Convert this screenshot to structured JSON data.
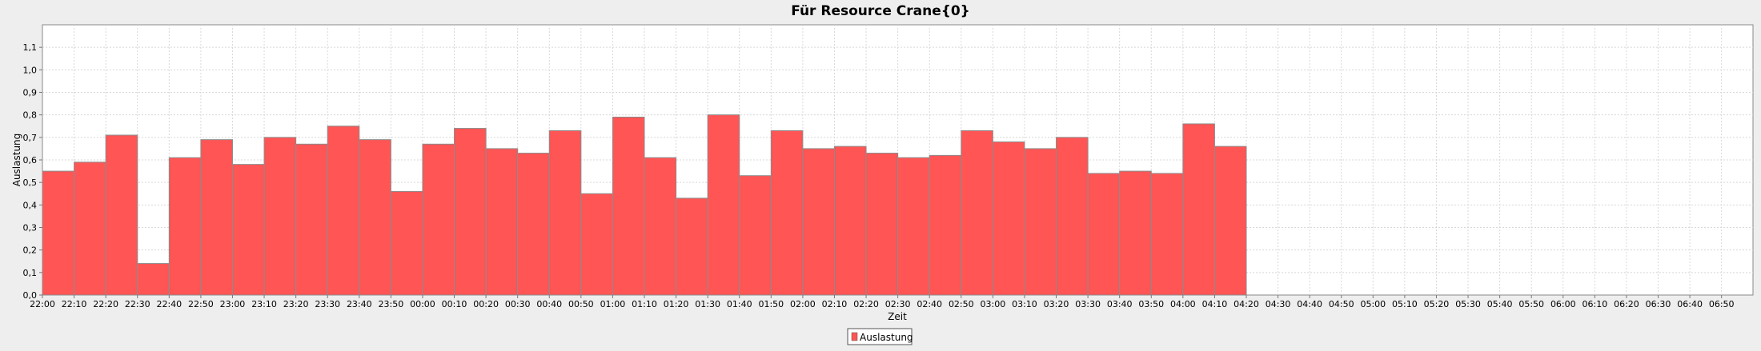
{
  "chart_data": {
    "type": "bar",
    "title": "Für Resource Crane{0}",
    "xlabel": "Zeit",
    "ylabel": "Auslastung",
    "ylim": [
      0,
      1.2
    ],
    "y_ticks": [
      "0,0",
      "0,1",
      "0,2",
      "0,3",
      "0,4",
      "0,5",
      "0,6",
      "0,7",
      "0,8",
      "0,9",
      "1,0",
      "1,1"
    ],
    "x_ticks": [
      "22:00",
      "22:10",
      "22:20",
      "22:30",
      "22:40",
      "22:50",
      "23:00",
      "23:10",
      "23:20",
      "23:30",
      "23:40",
      "23:50",
      "00:00",
      "00:10",
      "00:20",
      "00:30",
      "00:40",
      "00:50",
      "01:00",
      "01:10",
      "01:20",
      "01:30",
      "01:40",
      "01:50",
      "02:00",
      "02:10",
      "02:20",
      "02:30",
      "02:40",
      "02:50",
      "03:00",
      "03:10",
      "03:20",
      "03:30",
      "03:40",
      "03:50",
      "04:00",
      "04:10",
      "04:20",
      "04:30",
      "04:40",
      "04:50",
      "05:00",
      "05:10",
      "05:20",
      "05:30",
      "05:40",
      "05:50",
      "06:00",
      "06:10",
      "06:20",
      "06:30",
      "06:40",
      "06:50"
    ],
    "categories": [
      "22:00",
      "22:10",
      "22:20",
      "22:30",
      "22:40",
      "22:50",
      "23:00",
      "23:10",
      "23:20",
      "23:30",
      "23:40",
      "23:50",
      "00:00",
      "00:10",
      "00:20",
      "00:30",
      "00:40",
      "00:50",
      "01:00",
      "01:10",
      "01:20",
      "01:30",
      "01:40",
      "01:50",
      "02:00",
      "02:10",
      "02:20",
      "02:30",
      "02:40",
      "02:50",
      "03:00",
      "03:10",
      "03:20",
      "03:30",
      "03:40",
      "03:50",
      "04:00",
      "04:10"
    ],
    "series": [
      {
        "name": "Auslastung",
        "values": [
          0.55,
          0.59,
          0.71,
          0.14,
          0.61,
          0.69,
          0.58,
          0.7,
          0.67,
          0.75,
          0.69,
          0.46,
          0.67,
          0.74,
          0.65,
          0.63,
          0.73,
          0.45,
          0.79,
          0.61,
          0.43,
          0.8,
          0.53,
          0.73,
          0.65,
          0.66,
          0.63,
          0.61,
          0.62,
          0.73,
          0.68,
          0.65,
          0.7,
          0.54,
          0.55,
          0.54,
          0.76,
          0.66
        ]
      }
    ],
    "grid": true,
    "legend_position": "bottom-center",
    "colors": {
      "bar": "#ff5555",
      "bar_edge": "#8c8c8c",
      "plot_bg": "#ffffff",
      "page_bg": "#eeeeee",
      "grid": "#d8d8d8"
    }
  }
}
